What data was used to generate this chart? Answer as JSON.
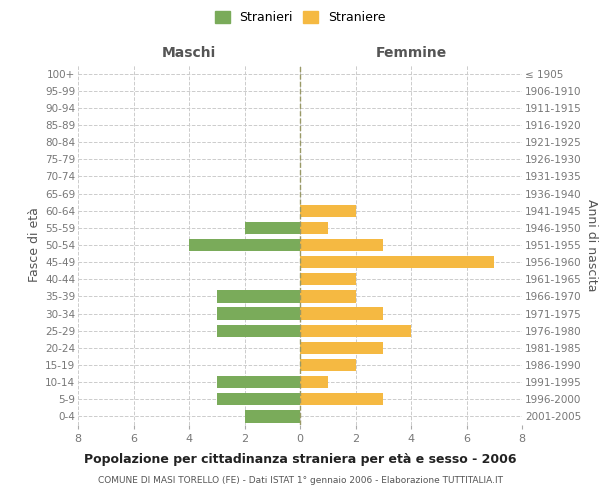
{
  "age_groups": [
    "100+",
    "95-99",
    "90-94",
    "85-89",
    "80-84",
    "75-79",
    "70-74",
    "65-69",
    "60-64",
    "55-59",
    "50-54",
    "45-49",
    "40-44",
    "35-39",
    "30-34",
    "25-29",
    "20-24",
    "15-19",
    "10-14",
    "5-9",
    "0-4"
  ],
  "birth_years": [
    "≤ 1905",
    "1906-1910",
    "1911-1915",
    "1916-1920",
    "1921-1925",
    "1926-1930",
    "1931-1935",
    "1936-1940",
    "1941-1945",
    "1946-1950",
    "1951-1955",
    "1956-1960",
    "1961-1965",
    "1966-1970",
    "1971-1975",
    "1976-1980",
    "1981-1985",
    "1986-1990",
    "1991-1995",
    "1996-2000",
    "2001-2005"
  ],
  "males": [
    0,
    0,
    0,
    0,
    0,
    0,
    0,
    0,
    0,
    2,
    4,
    0,
    0,
    3,
    3,
    3,
    0,
    0,
    3,
    3,
    2
  ],
  "females": [
    0,
    0,
    0,
    0,
    0,
    0,
    0,
    0,
    2,
    1,
    3,
    7,
    2,
    2,
    3,
    4,
    3,
    2,
    1,
    3,
    0
  ],
  "male_color": "#7aab5a",
  "female_color": "#f5b942",
  "title": "Popolazione per cittadinanza straniera per età e sesso - 2006",
  "subtitle": "COMUNE DI MASI TORELLO (FE) - Dati ISTAT 1° gennaio 2006 - Elaborazione TUTTITALIA.IT",
  "ylabel_left": "Fasce di età",
  "ylabel_right": "Anni di nascita",
  "xlabel_left": "Maschi",
  "xlabel_right": "Femmine",
  "xlim": 8,
  "legend_stranieri": "Stranieri",
  "legend_straniere": "Straniere",
  "bg_color": "#ffffff",
  "grid_color": "#cccccc",
  "axis_label_color": "#555555",
  "tick_label_color": "#777777"
}
